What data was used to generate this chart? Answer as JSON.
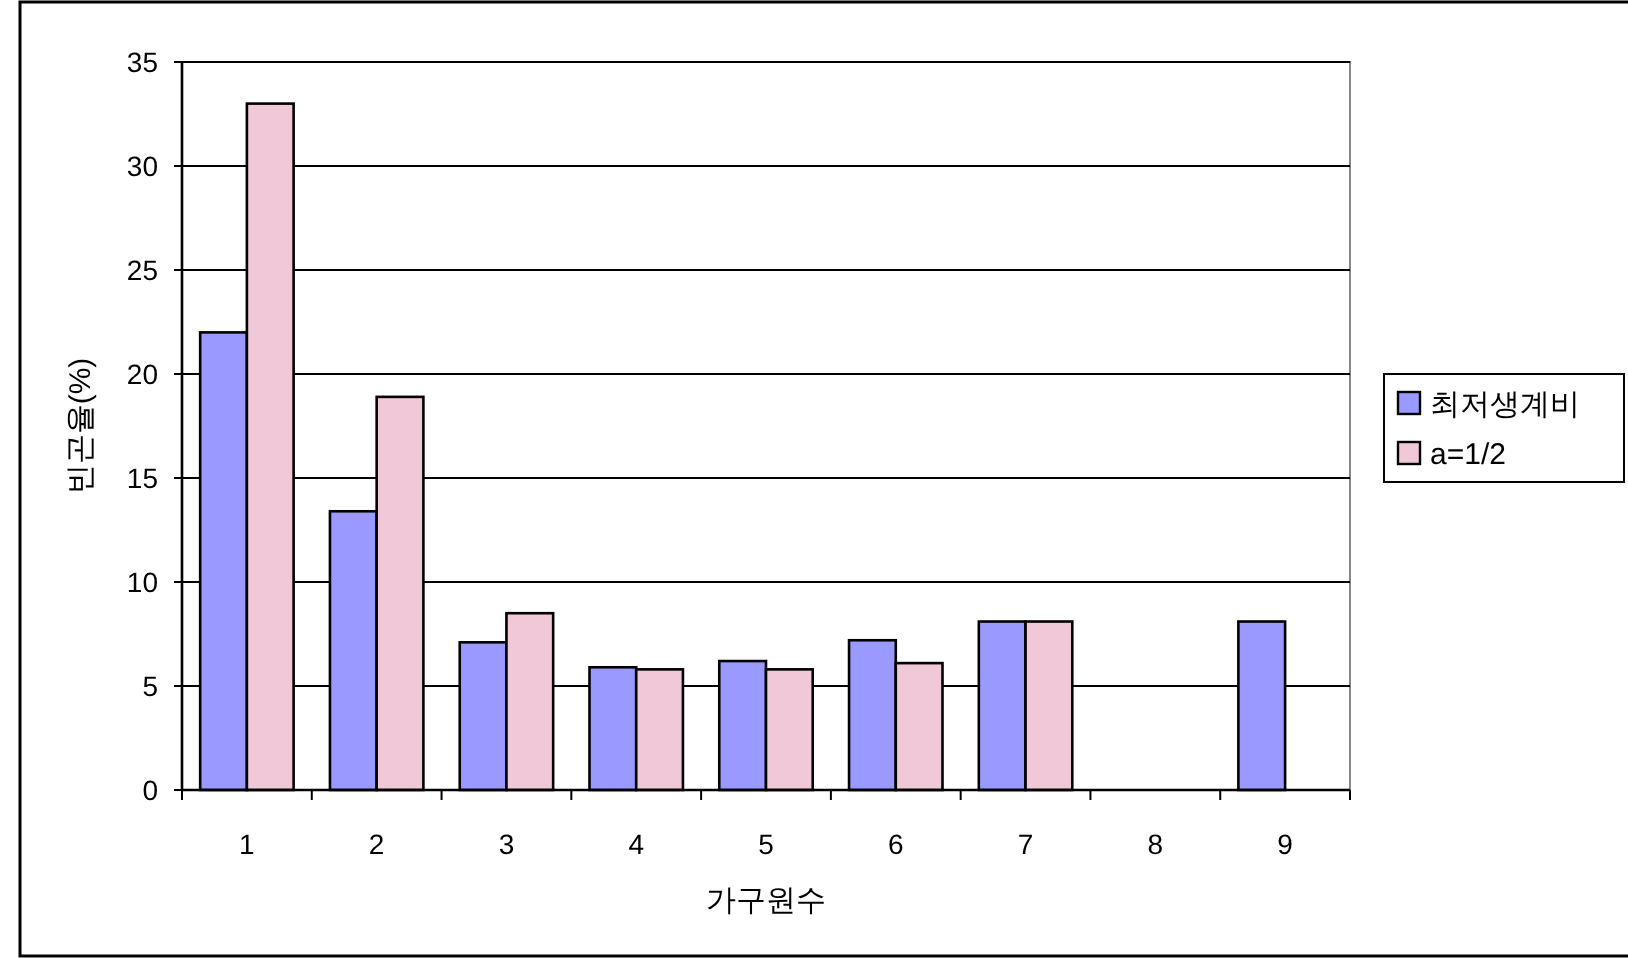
{
  "chart_data": {
    "type": "bar",
    "xlabel": "가구원수",
    "ylabel": "빈곤율(%)",
    "categories": [
      "1",
      "2",
      "3",
      "4",
      "5",
      "6",
      "7",
      "8",
      "9"
    ],
    "series": [
      {
        "name": "최저생계비",
        "color": "#9999ff",
        "values": [
          22.0,
          13.4,
          7.1,
          5.9,
          6.2,
          7.2,
          8.1,
          null,
          8.1
        ]
      },
      {
        "name": "a=1/2",
        "color": "#f0c8d8",
        "values": [
          33.0,
          18.9,
          8.5,
          5.8,
          5.8,
          6.1,
          8.1,
          null,
          null
        ]
      }
    ],
    "ylim": [
      0,
      35
    ],
    "yticks": [
      0,
      5,
      10,
      15,
      20,
      25,
      30,
      35
    ],
    "grid": "y",
    "legend": "right"
  }
}
